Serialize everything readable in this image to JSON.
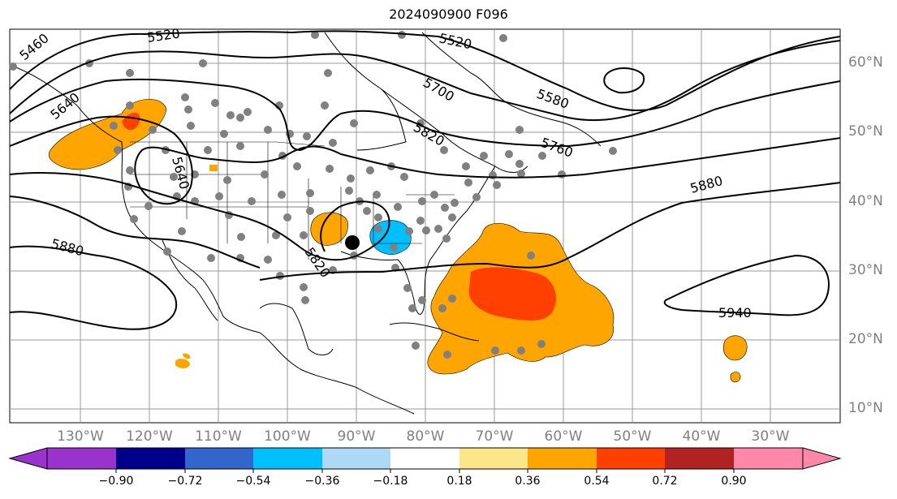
{
  "title": "2024090900 F096",
  "lat_labels": [
    "60°N",
    "50°N",
    "40°N",
    "30°N",
    "20°N",
    "10°N"
  ],
  "lon_labels": [
    "130°W",
    "120°W",
    "110°W",
    "100°W",
    "90°W",
    "80°W",
    "70°W",
    "60°W",
    "50°W",
    "40°W",
    "30°W"
  ],
  "contour_labels": [
    "5460",
    "5520",
    "5520",
    "5580",
    "5640",
    "5640",
    "5700",
    "5760",
    "5820",
    "5820",
    "5880",
    "5880",
    "5940"
  ],
  "colorbar": {
    "ticks": [
      "−0.90",
      "−0.72",
      "−0.54",
      "−0.36",
      "−0.18",
      "0.18",
      "0.36",
      "0.54",
      "0.72",
      "0.90"
    ],
    "colors": [
      "#9933cc",
      "#00008b",
      "#3366cc",
      "#00bfff",
      "#add8f6",
      "#ffffff",
      "#fce68a",
      "#ffa500",
      "#ff4000",
      "#b22222",
      "#ff88aa"
    ]
  }
}
